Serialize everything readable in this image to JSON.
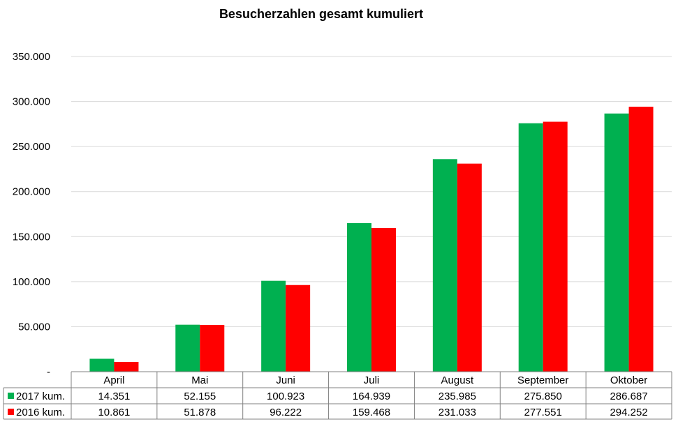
{
  "chart_data": {
    "type": "bar",
    "title": "Besucherzahlen gesamt kumuliert",
    "categories": [
      "April",
      "Mai",
      "Juni",
      "Juli",
      "August",
      "September",
      "Oktober"
    ],
    "series": [
      {
        "name": "2017 kum.",
        "color": "#00b050",
        "values": [
          14351,
          52155,
          100923,
          164939,
          235985,
          275850,
          286687
        ],
        "labels": [
          "14.351",
          "52.155",
          "100.923",
          "164.939",
          "235.985",
          "275.850",
          "286.687"
        ]
      },
      {
        "name": "2016 kum.",
        "color": "#ff0000",
        "values": [
          10861,
          51878,
          96222,
          159468,
          231033,
          277551,
          294252
        ],
        "labels": [
          "10.861",
          "51.878",
          "96.222",
          "159.468",
          "231.033",
          "277.551",
          "294.252"
        ]
      }
    ],
    "ylim": [
      0,
      350000
    ],
    "yticks": [
      0,
      50000,
      100000,
      150000,
      200000,
      250000,
      300000,
      350000
    ],
    "ytick_labels": [
      "-",
      "50.000",
      "100.000",
      "150.000",
      "200.000",
      "250.000",
      "300.000",
      "350.000"
    ],
    "grid": true,
    "legend": "data-table"
  }
}
